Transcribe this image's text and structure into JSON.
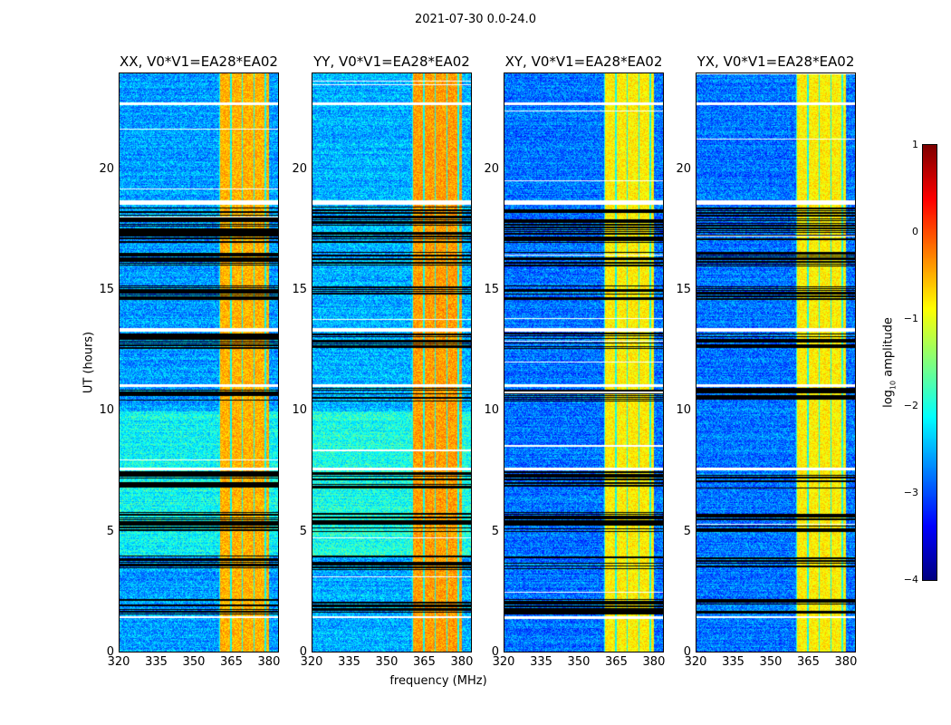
{
  "chart_data": {
    "type": "heatmap",
    "title": "2021-07-30 0.0-24.0",
    "xlabel": "frequency (MHz)",
    "ylabel": "UT (hours)",
    "xlim": [
      320,
      384
    ],
    "ylim": [
      0,
      24
    ],
    "xticks": [
      "320",
      "335",
      "350",
      "365",
      "380"
    ],
    "xtick_values": [
      320,
      335,
      350,
      365,
      380
    ],
    "yticks": [
      "0",
      "5",
      "10",
      "15",
      "20"
    ],
    "ytick_values": [
      0,
      5,
      10,
      15,
      20
    ],
    "panels": [
      {
        "title": "XX, V0*V1=EA28*EA02",
        "base_level": -2.6,
        "band_level": -0.5
      },
      {
        "title": "YY, V0*V1=EA28*EA02",
        "base_level": -2.5,
        "band_level": -0.4
      },
      {
        "title": "XY, V0*V1=EA28*EA02",
        "base_level": -2.8,
        "band_level": -0.8
      },
      {
        "title": "YX, V0*V1=EA28*EA02",
        "base_level": -2.8,
        "band_level": -0.8
      }
    ],
    "rfi_band_mhz": [
      360,
      380
    ],
    "flagged_ut_ranges": [
      [
        1.55,
        2.2
      ],
      [
        3.4,
        4.0
      ],
      [
        5.0,
        5.8
      ],
      [
        6.8,
        7.5
      ],
      [
        10.4,
        10.95
      ],
      [
        12.6,
        13.3
      ],
      [
        14.6,
        15.2
      ],
      [
        16.0,
        16.6
      ],
      [
        17.0,
        18.5
      ]
    ],
    "no_data_ut_ranges": [
      [
        1.4,
        1.5
      ],
      [
        7.55,
        7.65
      ],
      [
        11.0,
        11.1
      ],
      [
        13.3,
        13.45
      ],
      [
        18.55,
        18.75
      ],
      [
        22.7,
        22.8
      ]
    ],
    "colorbar": {
      "label": "log10 amplitude",
      "label_main": "log",
      "label_sub": "10",
      "label_rest": " amplitude",
      "range": [
        -4,
        1
      ],
      "ticks": [
        "1",
        "0",
        "−1",
        "−2",
        "−3",
        "−4"
      ],
      "tick_values": [
        1,
        0,
        -1,
        -2,
        -3,
        -4
      ],
      "colormap": "jet"
    }
  }
}
